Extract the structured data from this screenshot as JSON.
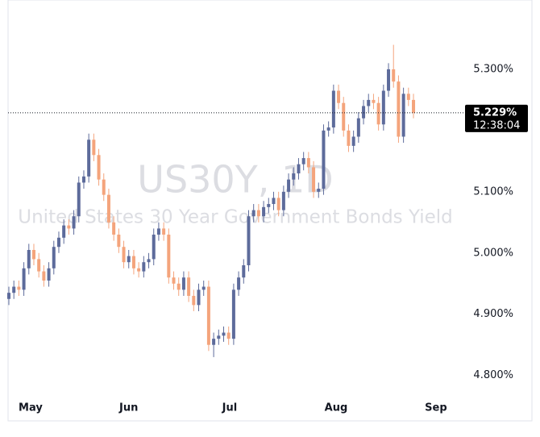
{
  "chart_data": {
    "type": "candlestick",
    "title": "US30Y, 1D",
    "subtitle": "United States 30 Year Government Bonds Yield",
    "open": [
      4.925,
      4.935,
      4.945,
      4.94,
      4.975,
      5.005,
      4.99,
      4.97,
      4.955,
      4.975,
      5.01,
      5.025,
      5.045,
      5.04,
      5.06,
      5.115,
      5.125,
      5.185,
      5.16,
      5.12,
      5.095,
      5.05,
      5.03,
      5.01,
      4.985,
      4.995,
      4.975,
      4.97,
      4.985,
      4.99,
      5.03,
      5.04,
      5.03,
      4.96,
      4.95,
      4.94,
      4.96,
      4.93,
      4.915,
      4.94,
      4.945,
      4.85,
      4.86,
      4.865,
      4.87,
      4.86,
      4.94,
      4.96,
      4.98,
      5.06,
      5.07,
      5.06,
      5.075,
      5.08,
      5.09,
      5.07,
      5.1,
      5.12,
      5.13,
      5.145,
      5.155,
      5.14,
      5.1,
      5.105,
      5.2,
      5.205,
      5.265,
      5.245,
      5.2,
      5.175,
      5.19,
      5.22,
      5.24,
      5.25,
      5.245,
      5.21,
      5.265,
      5.3,
      5.28,
      5.19,
      5.26,
      5.25
    ],
    "high": [
      4.945,
      4.955,
      4.955,
      4.985,
      5.015,
      5.015,
      5.0,
      4.98,
      4.985,
      5.02,
      5.035,
      5.055,
      5.055,
      5.07,
      5.125,
      5.135,
      5.195,
      5.195,
      5.17,
      5.13,
      5.105,
      5.06,
      5.04,
      5.02,
      5.005,
      5.005,
      4.985,
      4.995,
      5.0,
      5.04,
      5.05,
      5.05,
      5.04,
      4.97,
      4.96,
      4.97,
      4.97,
      4.94,
      4.95,
      4.955,
      4.955,
      4.87,
      4.875,
      4.88,
      4.88,
      4.95,
      4.97,
      4.99,
      5.07,
      5.08,
      5.08,
      5.085,
      5.09,
      5.1,
      5.1,
      5.11,
      5.13,
      5.14,
      5.155,
      5.165,
      5.165,
      5.15,
      5.115,
      5.21,
      5.215,
      5.275,
      5.275,
      5.255,
      5.21,
      5.2,
      5.23,
      5.25,
      5.26,
      5.26,
      5.255,
      5.275,
      5.31,
      5.34,
      5.29,
      5.27,
      5.27,
      5.26
    ],
    "low": [
      4.915,
      4.925,
      4.93,
      4.93,
      4.965,
      4.98,
      4.96,
      4.945,
      4.945,
      4.965,
      5.0,
      5.015,
      5.03,
      5.03,
      5.05,
      5.105,
      5.115,
      5.15,
      5.11,
      5.085,
      5.04,
      5.02,
      5.0,
      4.975,
      4.975,
      4.965,
      4.96,
      4.96,
      4.975,
      4.98,
      5.02,
      5.02,
      4.95,
      4.94,
      4.93,
      4.93,
      4.92,
      4.905,
      4.905,
      4.93,
      4.84,
      4.83,
      4.85,
      4.855,
      4.85,
      4.85,
      4.93,
      4.95,
      4.97,
      5.05,
      5.05,
      5.05,
      5.065,
      5.07,
      5.06,
      5.06,
      5.09,
      5.11,
      5.12,
      5.135,
      5.13,
      5.09,
      5.09,
      5.095,
      5.19,
      5.195,
      5.235,
      5.19,
      5.165,
      5.165,
      5.18,
      5.21,
      5.23,
      5.235,
      5.2,
      5.2,
      5.255,
      5.27,
      5.18,
      5.18,
      5.24,
      5.22
    ],
    "close": [
      4.935,
      4.945,
      4.94,
      4.975,
      5.005,
      4.99,
      4.97,
      4.955,
      4.975,
      5.01,
      5.025,
      5.045,
      5.04,
      5.06,
      5.115,
      5.125,
      5.185,
      5.16,
      5.12,
      5.095,
      5.05,
      5.03,
      5.01,
      4.985,
      4.995,
      4.975,
      4.97,
      4.985,
      4.99,
      5.03,
      5.04,
      5.03,
      4.96,
      4.95,
      4.94,
      4.96,
      4.93,
      4.915,
      4.94,
      4.945,
      4.85,
      4.86,
      4.865,
      4.87,
      4.86,
      4.94,
      4.96,
      4.98,
      5.06,
      5.07,
      5.06,
      5.075,
      5.08,
      5.09,
      5.07,
      5.1,
      5.12,
      5.13,
      5.145,
      5.155,
      5.14,
      5.1,
      5.105,
      5.2,
      5.205,
      5.265,
      5.245,
      5.2,
      5.175,
      5.19,
      5.22,
      5.24,
      5.25,
      5.245,
      5.21,
      5.265,
      5.3,
      5.28,
      5.19,
      5.26,
      5.25,
      5.229
    ],
    "up_color": "#5d6b9b",
    "down_color": "#f4a47c",
    "xlim": [
      -0.16,
      91
    ],
    "xticks": [
      {
        "value": 4.35,
        "label": "May"
      },
      {
        "value": 24,
        "label": "Jun"
      },
      {
        "value": 44.2,
        "label": "Jul"
      },
      {
        "value": 65.5,
        "label": "Aug"
      },
      {
        "value": 85.5,
        "label": "Sep"
      }
    ],
    "ylim": [
      4.768,
      5.4
    ],
    "yticks": [
      {
        "value": 4.8,
        "label": "4.800%"
      },
      {
        "value": 4.9,
        "label": "4.900%"
      },
      {
        "value": 5.0,
        "label": "5.000%"
      },
      {
        "value": 5.1,
        "label": "5.100%"
      },
      {
        "value": 5.3,
        "label": "5.300%"
      }
    ],
    "last_price": {
      "value": 5.229,
      "label": "5.229%"
    },
    "countdown": "12:38:04"
  }
}
